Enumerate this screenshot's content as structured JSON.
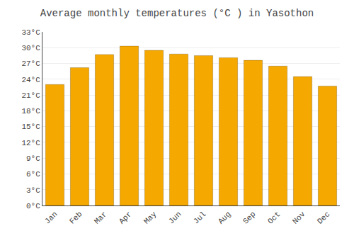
{
  "chart_data": {
    "type": "bar",
    "title": "Average monthly temperatures (°C ) in Yasothon",
    "categories": [
      "Jan",
      "Feb",
      "Mar",
      "Apr",
      "May",
      "Jun",
      "Jul",
      "Aug",
      "Sep",
      "Oct",
      "Nov",
      "Dec"
    ],
    "values": [
      23.0,
      26.2,
      28.7,
      30.3,
      29.5,
      28.8,
      28.5,
      28.1,
      27.6,
      26.5,
      24.5,
      22.7
    ],
    "color": "#F5A800",
    "ylim": [
      0,
      33
    ],
    "yticks": [
      {
        "value": 0,
        "label": "0°C"
      },
      {
        "value": 3,
        "label": "3°C"
      },
      {
        "value": 6,
        "label": "6°C"
      },
      {
        "value": 9,
        "label": "9°C"
      },
      {
        "value": 12,
        "label": "12°C"
      },
      {
        "value": 15,
        "label": "15°C"
      },
      {
        "value": 18,
        "label": "18°C"
      },
      {
        "value": 21,
        "label": "21°C"
      },
      {
        "value": 24,
        "label": "24°C"
      },
      {
        "value": 27,
        "label": "27°C"
      },
      {
        "value": 30,
        "label": "30°C"
      },
      {
        "value": 33,
        "label": "33°C"
      }
    ],
    "grid": true
  }
}
